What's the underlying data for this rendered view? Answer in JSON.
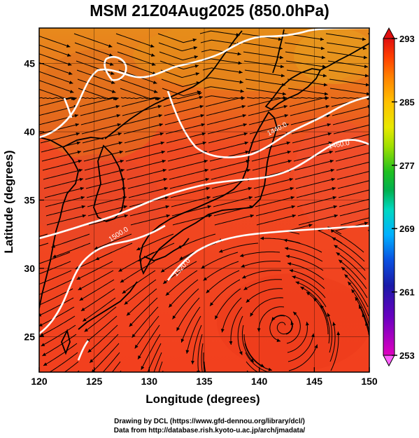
{
  "title": "MSM 21Z04Aug2025 (850.0hPa)",
  "credit": {
    "line1": "Drawing by DCL (https://www.gfd-dennou.org/library/dcl/)",
    "line2": "Data from http://database.rish.kyoto-u.ac.jp/arch/jmadata/"
  },
  "map": {
    "xlabel": "Longitude (degrees)",
    "ylabel": "Latitude  (degrees)",
    "xlim": [
      120,
      150
    ],
    "ylim": [
      22.4,
      47.6
    ],
    "xticks": [
      "120",
      "125",
      "130",
      "135",
      "140",
      "145",
      "150"
    ],
    "yticks": [
      "25",
      "30",
      "35",
      "40",
      "45"
    ],
    "contour_labels": [
      "1440.0",
      "1460.0",
      "1500.0",
      "1520.0"
    ]
  },
  "colorbar": {
    "ticks": [
      "253",
      "261",
      "269",
      "277",
      "285",
      "293"
    ],
    "range": [
      253,
      293
    ],
    "colors": [
      "#e000c0",
      "#6a00c0",
      "#1a1aa8",
      "#0a50e0",
      "#00b0ff",
      "#00d8c0",
      "#00b050",
      "#20c020",
      "#a0e000",
      "#e8e800",
      "#ffc000",
      "#ff8000",
      "#ff4000",
      "#e01010"
    ]
  }
}
